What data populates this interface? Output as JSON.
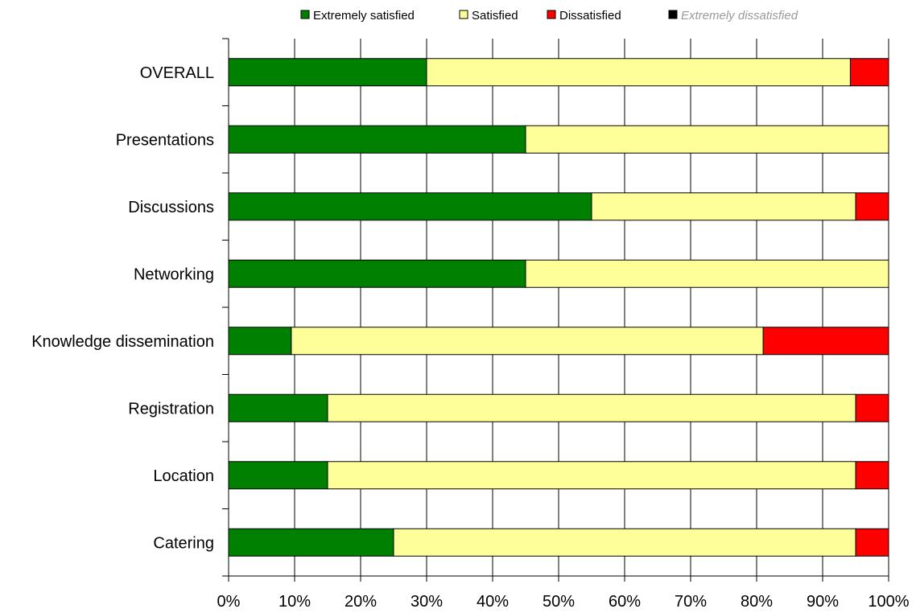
{
  "chart_data": {
    "type": "bar",
    "orientation": "horizontal",
    "stacked": true,
    "normalized": true,
    "title": "",
    "xlabel": "",
    "ylabel": "",
    "xlim": [
      0,
      100
    ],
    "grid": true,
    "legend_position": "top",
    "categories": [
      "OVERALL",
      "Presentations",
      "Discussions",
      "Networking",
      "Knowledge dissemination",
      "Registration",
      "Location",
      "Catering"
    ],
    "x_ticks": [
      "0%",
      "10%",
      "20%",
      "30%",
      "40%",
      "50%",
      "60%",
      "70%",
      "80%",
      "90%",
      "100%"
    ],
    "series": [
      {
        "name": "Extremely satisfied",
        "color": "#008000",
        "values": [
          30,
          45,
          55,
          45,
          9.5,
          15,
          15,
          25
        ]
      },
      {
        "name": "Satisfied",
        "color": "#ffff99",
        "values": [
          64.2,
          55,
          40,
          55,
          71.5,
          80,
          80,
          70
        ]
      },
      {
        "name": "Dissatisfied",
        "color": "#ff0000",
        "values": [
          5.8,
          0,
          5,
          0,
          19,
          5,
          5,
          5
        ]
      },
      {
        "name": "Extremely dissatisfied",
        "color": "#000000",
        "values": [
          0,
          0,
          0,
          0,
          0,
          0,
          0,
          0
        ]
      }
    ]
  }
}
